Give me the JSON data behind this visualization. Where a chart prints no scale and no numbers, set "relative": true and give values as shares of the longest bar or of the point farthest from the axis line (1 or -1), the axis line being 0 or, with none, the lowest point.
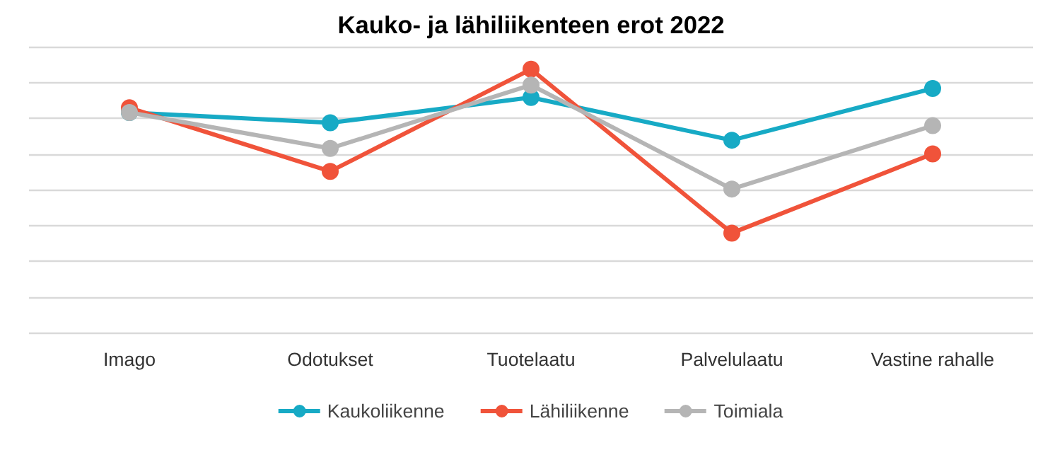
{
  "chart_data": {
    "type": "line",
    "title": "Kauko- ja lähiliikenteen erot 2022",
    "categories": [
      "Imago",
      "Odotukset",
      "Tuotelaatu",
      "Palvelulaatu",
      "Vastine rahalle"
    ],
    "relative": true,
    "grid": "y",
    "legend": "bottom",
    "marker": "circle",
    "line_style": "solid",
    "series": [
      {
        "name": "Kaukoliikenne",
        "color": "#17aac5",
        "values": [
          0.836,
          0.797,
          0.893,
          0.731,
          0.927
        ]
      },
      {
        "name": "Lähiliikenne",
        "color": "#f0533a",
        "values": [
          0.854,
          0.613,
          1,
          0.379,
          0.679
        ]
      },
      {
        "name": "Toimiala",
        "color": "#b5b5b5",
        "values": [
          0.836,
          0.7,
          0.94,
          0.546,
          0.786
        ]
      }
    ]
  }
}
